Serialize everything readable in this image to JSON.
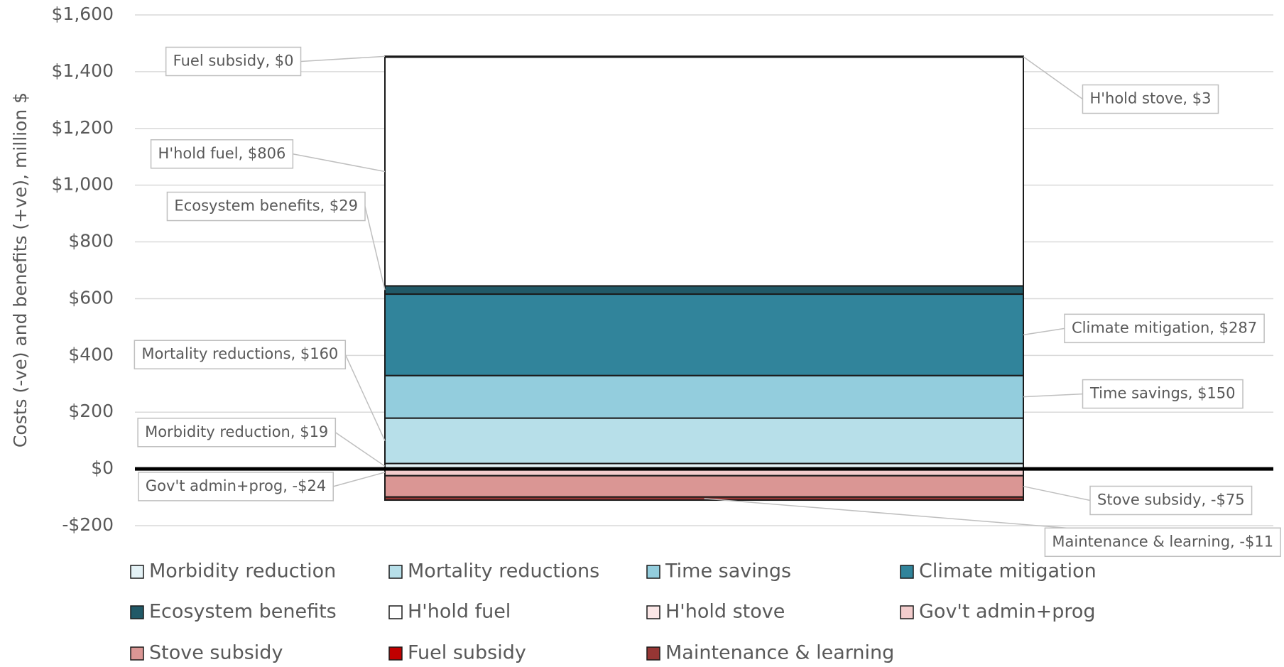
{
  "chart_data": {
    "type": "stacked-bar",
    "y_label": "Costs (-ve) and benefits (+ve), million $",
    "categories": [
      null
    ],
    "ylim": [
      -200,
      1600
    ],
    "yticks": [
      {
        "value": -200,
        "label": "-$200"
      },
      {
        "value": 0,
        "label": "$0"
      },
      {
        "value": 200,
        "label": "$200"
      },
      {
        "value": 400,
        "label": "$400"
      },
      {
        "value": 600,
        "label": "$600"
      },
      {
        "value": 800,
        "label": "$800"
      },
      {
        "value": 1000,
        "label": "$1,000"
      },
      {
        "value": 1200,
        "label": "$1,200"
      },
      {
        "value": 1400,
        "label": "$1,400"
      },
      {
        "value": 1600,
        "label": "$1,600"
      }
    ],
    "grid": true,
    "legend": "bottom",
    "series": [
      {
        "name": "Morbidity reduction",
        "color": "#e4f2f6",
        "values": [
          19
        ],
        "value_labels": [
          "Morbidity reduction, $19"
        ]
      },
      {
        "name": "Mortality reductions",
        "color": "#b7dfe9",
        "values": [
          160
        ],
        "value_labels": [
          "Mortality reductions, $160"
        ]
      },
      {
        "name": "Time savings",
        "color": "#93cddd",
        "values": [
          150
        ],
        "value_labels": [
          "Time savings, $150"
        ]
      },
      {
        "name": "Climate mitigation",
        "color": "#31849b",
        "values": [
          287
        ],
        "value_labels": [
          "Climate mitigation, $287"
        ]
      },
      {
        "name": "Ecosystem benefits",
        "color": "#215967",
        "values": [
          29
        ],
        "value_labels": [
          "Ecosystem benefits, $29"
        ]
      },
      {
        "name": "H'hold fuel",
        "color": "#ffffff",
        "values": [
          806
        ],
        "value_labels": [
          "H'hold fuel, $806"
        ]
      },
      {
        "name": "H'hold stove",
        "color": "#fbe7e7",
        "values": [
          3
        ],
        "value_labels": [
          "H'hold stove, $3"
        ]
      },
      {
        "name": "Gov't admin+prog",
        "color": "#f2cccc",
        "values": [
          -24
        ],
        "value_labels": [
          "Gov't admin+prog, -$24"
        ]
      },
      {
        "name": "Stove subsidy",
        "color": "#da9694",
        "values": [
          -75
        ],
        "value_labels": [
          "Stove subsidy, -$75"
        ]
      },
      {
        "name": "Fuel subsidy",
        "color": "#c00000",
        "values": [
          0
        ],
        "value_labels": [
          "Fuel subsidy, $0"
        ]
      },
      {
        "name": "Maintenance & learning",
        "color": "#963634",
        "values": [
          -11
        ],
        "value_labels": [
          "Maintenance & learning, -$11"
        ]
      }
    ]
  }
}
